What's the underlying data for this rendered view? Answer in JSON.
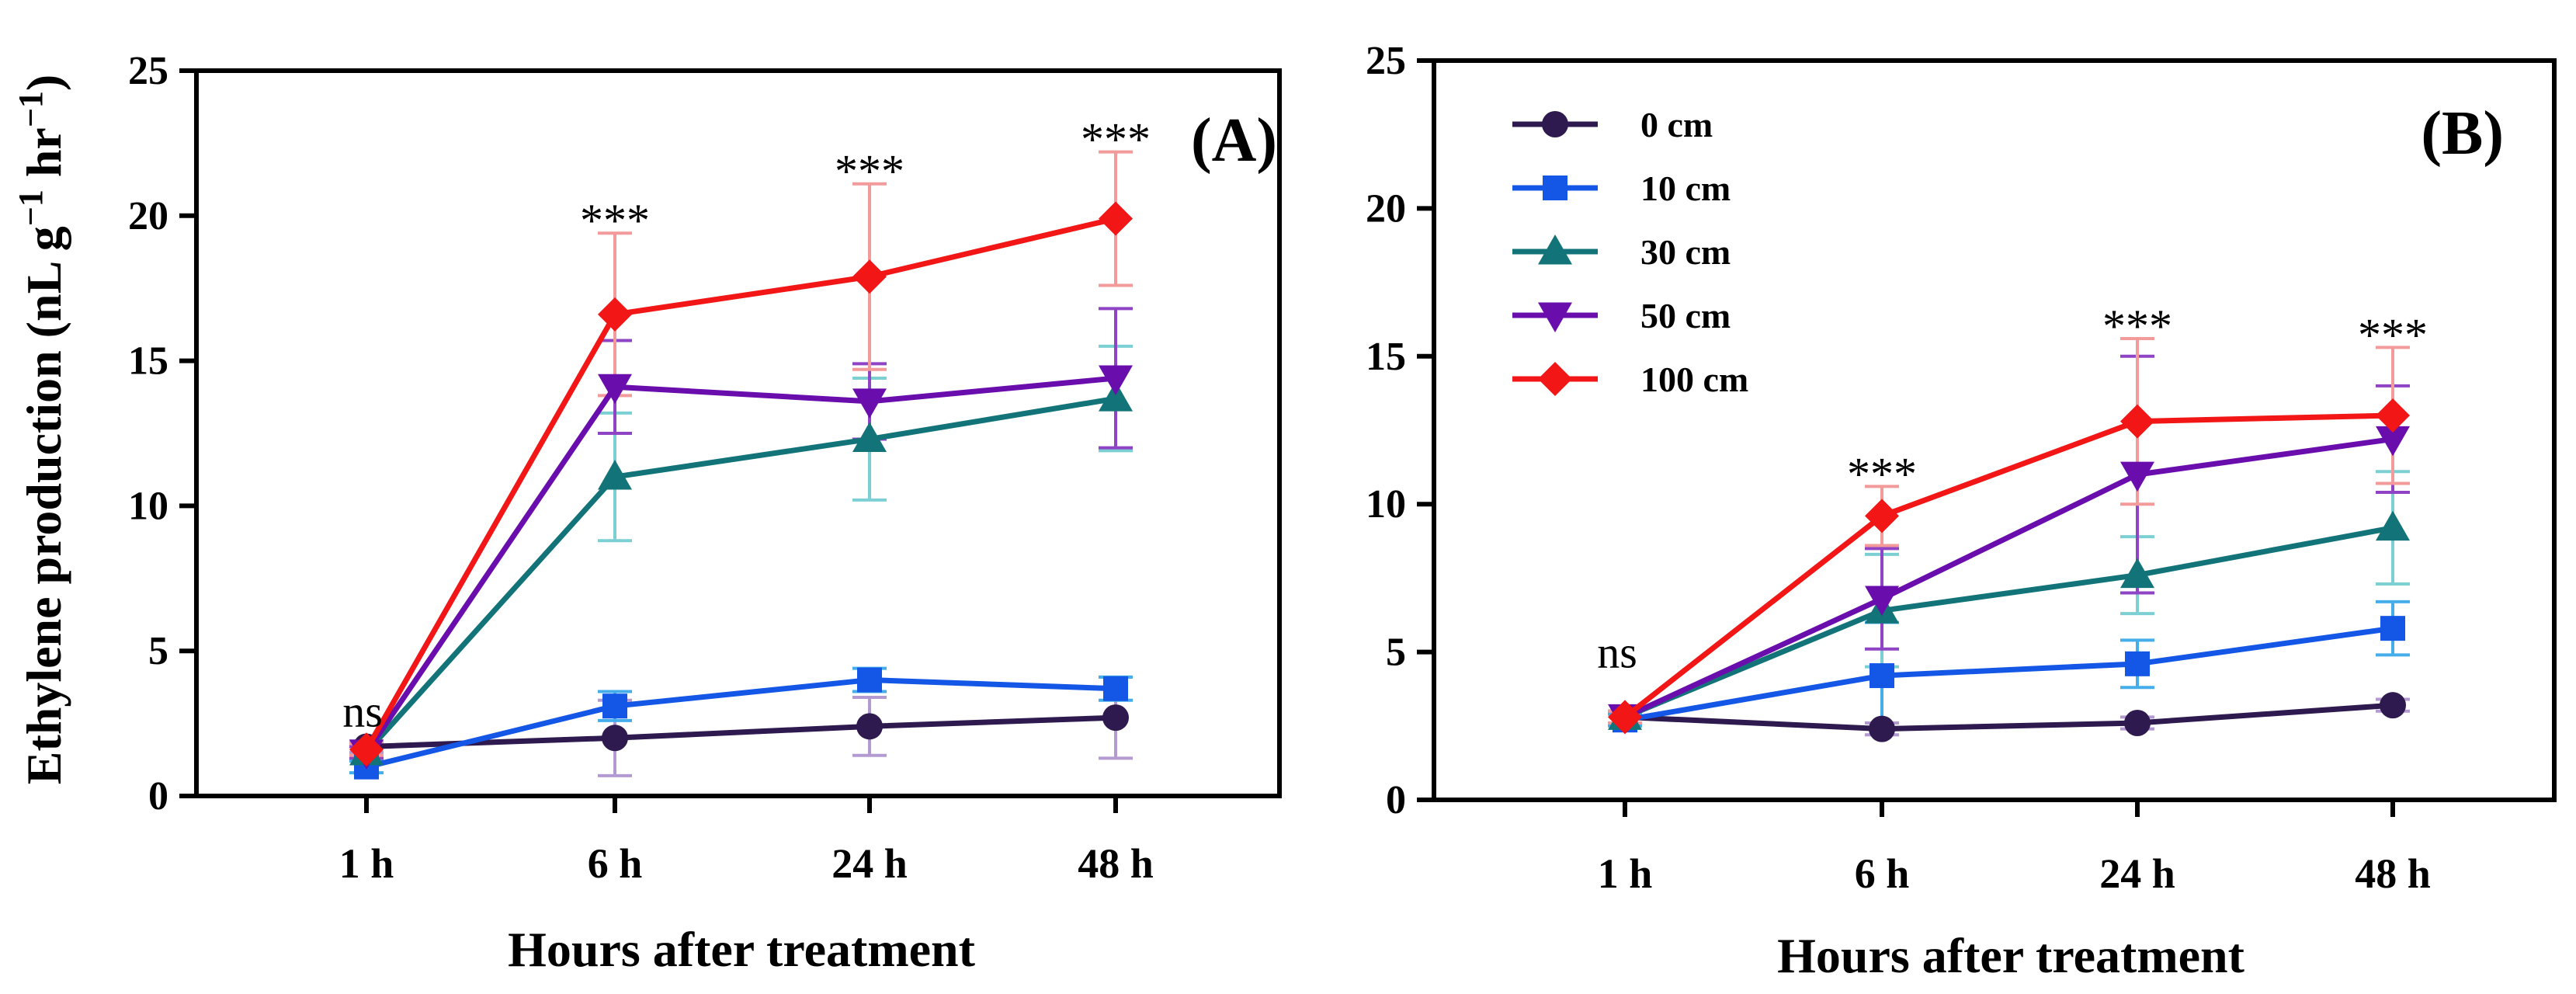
{
  "colors": {
    "c0": "#2E1A4F",
    "c10": "#1457E6",
    "c30": "#127478",
    "c50": "#6A0DAD",
    "c100": "#F21616",
    "err0": "#B39AD0",
    "err10": "#45AEEA",
    "err30": "#7CCFD2",
    "err50": "#8E44C4",
    "err100": "#F39A9A"
  },
  "chart_data": [
    {
      "type": "line",
      "panel_label": "(A)",
      "title": "",
      "xlabel": "Hours after treatment",
      "ylabel_prefix": "Ethylene production (nL g",
      "ylabel_sup1": "−1",
      "ylabel_mid": " hr",
      "ylabel_sup2": "−1",
      "ylabel_suffix": ")",
      "ylim": [
        0,
        25
      ],
      "yticks": [
        "0",
        "5",
        "10",
        "15",
        "20",
        "25"
      ],
      "categories": [
        "1 h",
        "6 h",
        "24 h",
        "48 h"
      ],
      "annotations": [
        "ns",
        "***",
        "***",
        "***"
      ],
      "legend": "none",
      "series": [
        {
          "name": "0 cm",
          "marker": "circle",
          "values": [
            1.7,
            2.0,
            2.4,
            2.7
          ],
          "errors": [
            0.2,
            1.3,
            1.0,
            1.4
          ]
        },
        {
          "name": "10 cm",
          "marker": "square",
          "values": [
            1.0,
            3.1,
            4.0,
            3.7
          ],
          "errors": [
            0.2,
            0.5,
            0.4,
            0.4
          ]
        },
        {
          "name": "30 cm",
          "marker": "triangle-up",
          "values": [
            1.5,
            11.0,
            12.3,
            13.7
          ],
          "errors": [
            0.2,
            2.2,
            2.1,
            1.8
          ]
        },
        {
          "name": "50 cm",
          "marker": "triangle-down",
          "values": [
            1.5,
            14.1,
            13.6,
            14.4
          ],
          "errors": [
            0.2,
            1.6,
            1.3,
            2.4
          ]
        },
        {
          "name": "100 cm",
          "marker": "diamond",
          "values": [
            1.6,
            16.6,
            17.9,
            19.9
          ],
          "errors": [
            0.2,
            2.8,
            3.2,
            2.3
          ]
        }
      ]
    },
    {
      "type": "line",
      "panel_label": "(B)",
      "title": "",
      "xlabel": "Hours after treatment",
      "ylabel": "",
      "ylim": [
        0,
        25
      ],
      "yticks": [
        "0",
        "5",
        "10",
        "15",
        "20",
        "25"
      ],
      "categories": [
        "1 h",
        "6 h",
        "24 h",
        "48 h"
      ],
      "annotations": [
        "ns",
        "***",
        "***",
        "***"
      ],
      "legend": "top-left",
      "series": [
        {
          "name": "0 cm",
          "marker": "circle",
          "values": [
            2.8,
            2.4,
            2.6,
            3.2
          ],
          "errors": [
            0.2,
            0.2,
            0.2,
            0.2
          ]
        },
        {
          "name": "10 cm",
          "marker": "square",
          "values": [
            2.7,
            4.2,
            4.6,
            5.8
          ],
          "errors": [
            0.2,
            1.8,
            0.8,
            0.9
          ]
        },
        {
          "name": "30 cm",
          "marker": "triangle-up",
          "values": [
            2.8,
            6.4,
            7.6,
            9.2
          ],
          "errors": [
            0.2,
            1.9,
            1.3,
            1.9
          ]
        },
        {
          "name": "50 cm",
          "marker": "triangle-down",
          "values": [
            2.8,
            6.8,
            11.0,
            12.2
          ],
          "errors": [
            0.2,
            1.7,
            4.0,
            1.8
          ]
        },
        {
          "name": "100 cm",
          "marker": "diamond",
          "values": [
            2.8,
            9.6,
            12.8,
            13.0
          ],
          "errors": [
            0.2,
            1.0,
            2.8,
            2.3
          ]
        }
      ]
    }
  ]
}
